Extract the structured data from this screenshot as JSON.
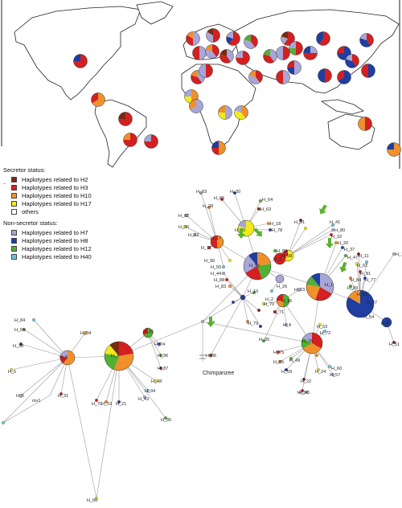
{
  "legend": {
    "secretor_title": "Secretor status:",
    "secretor_items": [
      {
        "label": "Haplotypes related to H2",
        "color": "#7a2a10"
      },
      {
        "label": "Haplotypes related to H3",
        "color": "#d42020"
      },
      {
        "label": "Haplotypes related to H10",
        "color": "#f0902a"
      },
      {
        "label": "Haplotypes related to H17",
        "color": "#f2ea1a"
      },
      {
        "label": "others",
        "color": "#ffffff"
      }
    ],
    "nonsecretor_title": "Non-secretor status:",
    "nonsecretor_items": [
      {
        "label": "Haplotypes related to H7",
        "color": "#a8a6d6"
      },
      {
        "label": "Haplotypes related to H8",
        "color": "#1f3ea0"
      },
      {
        "label": "Haplotypes related to H12",
        "color": "#52b032"
      },
      {
        "label": "Haplotypes related to H40",
        "color": "#6cc6e6"
      }
    ]
  },
  "network": {
    "outgroup_label": "Chimpanzee",
    "node_labels": [
      "H_93",
      "H_65",
      "H_28",
      "H_30",
      "H_64",
      "H_63",
      "H_36",
      "H_82",
      "H_33",
      "H_12",
      "H_17",
      "H_40",
      "H_18",
      "H_78",
      "H_88",
      "H_91",
      "H_41",
      "H_80",
      "H_32",
      "H_20",
      "H_37",
      "H_47",
      "H_11",
      "H_62",
      "H_14",
      "H_1",
      "H_81",
      "H_84",
      "H_77",
      "H_89",
      "H_56",
      "H_90",
      "H_50",
      "H_44",
      "H_88",
      "H_83",
      "H_56",
      "H_10",
      "H_26",
      "H_23",
      "H_70",
      "H_76",
      "H_2",
      "H_71",
      "H_27",
      "H_8",
      "H_51",
      "H_53",
      "H_72",
      "H_4",
      "H_75",
      "H_85",
      "H_59",
      "H_49",
      "H_22",
      "H_24",
      "H_60",
      "H_57",
      "H_39",
      "H_54",
      "H_84",
      "H_55",
      "H_38",
      "H_9",
      "H_6",
      "H_5",
      "H_31",
      "H_34",
      "H_15",
      "H_74",
      "H_96",
      "H_87",
      "H_48",
      "H_94",
      "H_43",
      "H_70",
      "H_19",
      "H_21",
      "H_95",
      "H_86",
      "H_66",
      "mv1",
      "mv",
      "H_3",
      "H_7",
      "H_79",
      "H_58",
      "H_16",
      "H_45",
      "H_35",
      "H_52"
    ]
  }
}
